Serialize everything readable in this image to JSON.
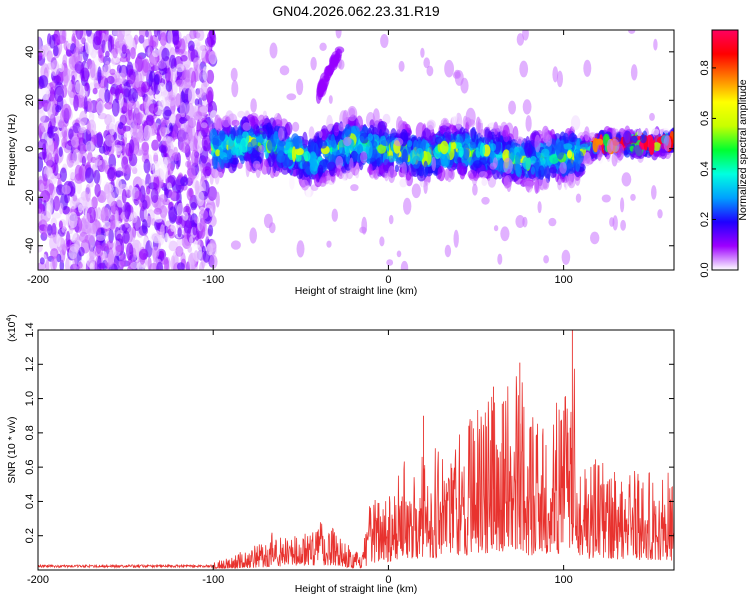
{
  "figure": {
    "title": "GN04.2026.062.23.31.R19"
  },
  "chart_data": [
    {
      "type": "heatmap",
      "xlabel": "Height of straight line (km)",
      "ylabel": "Frequency (Hz)",
      "xlim": [
        -200,
        163
      ],
      "ylim": [
        -50,
        49
      ],
      "xticks": [
        -200,
        -100,
        0,
        100
      ],
      "yticks": [
        -40,
        -20,
        0,
        20,
        40
      ],
      "colorbar": {
        "label": "Normalized spectral amplitude",
        "range": [
          0.0,
          0.95
        ],
        "ticks": [
          0.0,
          0.2,
          0.4,
          0.6,
          0.8
        ],
        "tick_labels": [
          "0.0",
          "0.2",
          "0.4",
          "0.6",
          "0.8"
        ],
        "colors": [
          "#ffffff",
          "#9d00ff",
          "#1f00ff",
          "#00a0ff",
          "#00ffe0",
          "#00ff30",
          "#c8ff00",
          "#ffff00",
          "#ff8000",
          "#ff0000",
          "#ff0060"
        ]
      },
      "ridge": {
        "description": "Dominant frequency ridge vs height",
        "x": [
          -100,
          -90,
          -80,
          -70,
          -60,
          -50,
          -45,
          -40,
          -30,
          -20,
          -10,
          0,
          10,
          20,
          30,
          40,
          50,
          60,
          70,
          80,
          90,
          100,
          110,
          120,
          130,
          140,
          150,
          163
        ],
        "y": [
          0,
          1,
          3,
          2,
          0,
          -3,
          -5,
          -4,
          0,
          2,
          1,
          0,
          -2,
          -3,
          -1,
          0,
          -1,
          -2,
          -4,
          -5,
          -4,
          -3,
          -1,
          2,
          2,
          2,
          2,
          3
        ]
      },
      "secondary_trace": {
        "x": [
          -40,
          -35,
          -30,
          -27
        ],
        "y": [
          22,
          30,
          37,
          41
        ]
      },
      "noise_region": {
        "x": [
          -200,
          -100
        ],
        "y": [
          -50,
          49
        ]
      }
    },
    {
      "type": "line",
      "xlabel": "Height of straight line (km)",
      "ylabel": "SNR (10 * v/v)",
      "ylabel_scale": "(x10",
      "ylabel_scale_exp": "4",
      "ylabel_scale_close": ")",
      "xlim": [
        -200,
        163
      ],
      "ylim": [
        0,
        1.4
      ],
      "xticks": [
        -200,
        -100,
        0,
        100
      ],
      "yticks": [
        0.2,
        0.4,
        0.6,
        0.8,
        1.0,
        1.2,
        1.4
      ],
      "ytick_labels": [
        "0.2",
        "0.4",
        "0.6",
        "0.8",
        "1.0",
        "1.2",
        "1.4"
      ],
      "color": "#e8322e",
      "envelope": {
        "x": [
          -200,
          -150,
          -110,
          -100,
          -90,
          -80,
          -70,
          -65,
          -60,
          -50,
          -40,
          -30,
          -20,
          -15,
          -10,
          0,
          10,
          20,
          30,
          40,
          50,
          60,
          70,
          75,
          80,
          90,
          100,
          105,
          110,
          120,
          130,
          140,
          150,
          163
        ],
        "y": [
          0.02,
          0.02,
          0.03,
          0.04,
          0.08,
          0.12,
          0.16,
          0.25,
          0.18,
          0.22,
          0.28,
          0.26,
          0.1,
          0.1,
          0.4,
          0.5,
          0.62,
          0.7,
          0.72,
          0.8,
          0.92,
          1.0,
          1.1,
          1.2,
          0.85,
          0.9,
          0.95,
          1.4,
          0.7,
          0.6,
          0.62,
          0.6,
          0.55,
          0.55
        ]
      },
      "peaks": [
        {
          "x": 105,
          "y": 1.4
        },
        {
          "x": 75,
          "y": 1.21
        },
        {
          "x": 60,
          "y": 1.07
        },
        {
          "x": 65,
          "y": 0.97
        },
        {
          "x": 20,
          "y": 0.9
        }
      ]
    }
  ]
}
